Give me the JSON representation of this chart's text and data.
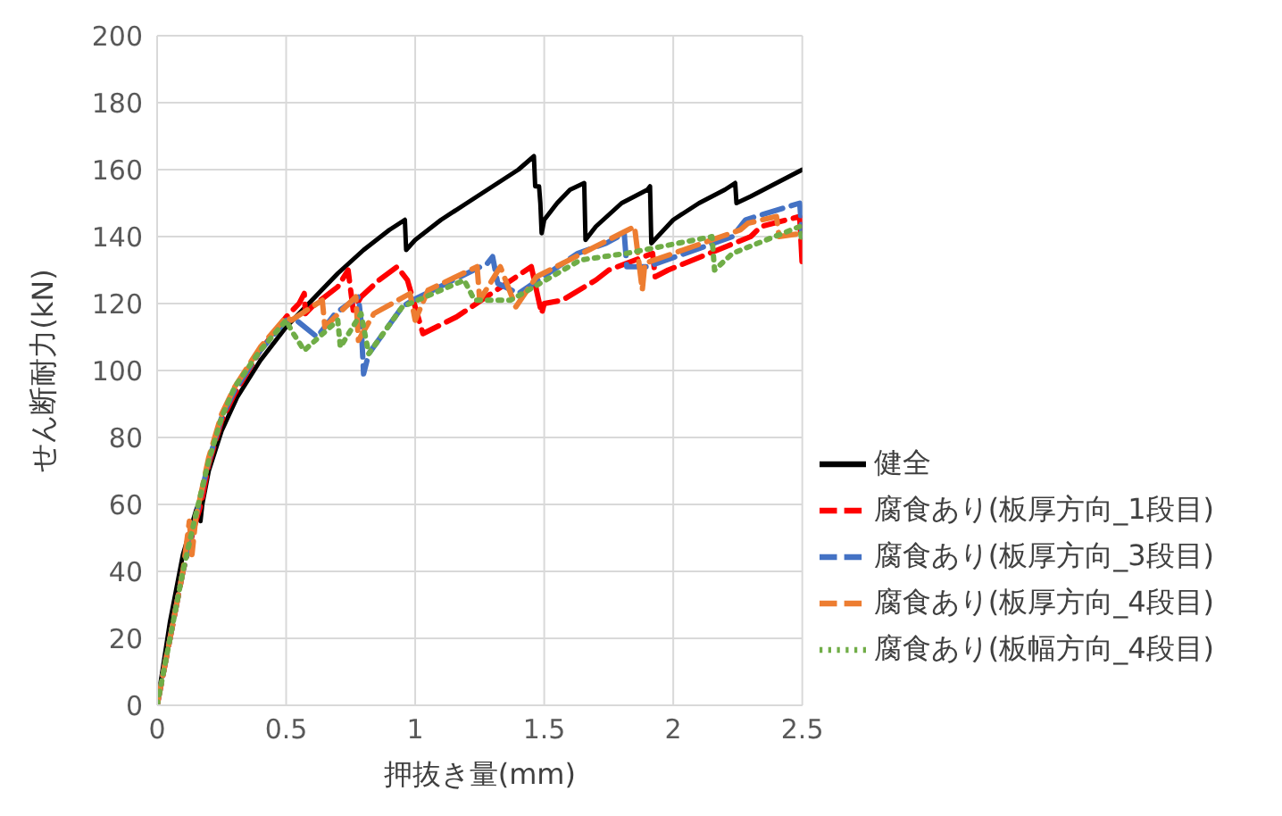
{
  "chart_data": {
    "type": "line",
    "xlabel": "押抜き量(mm)",
    "ylabel": "せん断耐力(kN)",
    "xlim": [
      0,
      2.5
    ],
    "xticks": [
      0,
      0.5,
      1,
      1.5,
      2,
      2.5
    ],
    "ylim": [
      0,
      200
    ],
    "yticks": [
      0,
      20,
      40,
      60,
      80,
      100,
      120,
      140,
      160,
      180,
      200
    ],
    "grid": true,
    "legend": "bottom right",
    "marker": "none",
    "series": [
      {
        "name": "健全",
        "color": "#000000",
        "line_style": "solid",
        "x": [
          0,
          0.05,
          0.1,
          0.15,
          0.165,
          0.168,
          0.175,
          0.2,
          0.25,
          0.31,
          0.4,
          0.5,
          0.6,
          0.7,
          0.8,
          0.9,
          0.96,
          0.965,
          1.0,
          1.1,
          1.2,
          1.3,
          1.4,
          1.46,
          1.465,
          1.48,
          1.485,
          1.49,
          1.5,
          1.55,
          1.6,
          1.655,
          1.66,
          1.7,
          1.8,
          1.9,
          1.91,
          1.915,
          2.0,
          2.1,
          2.2,
          2.24,
          2.245,
          2.3,
          2.4,
          2.5
        ],
        "values": [
          0,
          25,
          45,
          58,
          61,
          55,
          60,
          70,
          82,
          92,
          103,
          113,
          121,
          129,
          136,
          142,
          145,
          136,
          139,
          145,
          150,
          155,
          160,
          164,
          155,
          155,
          150,
          141,
          145,
          150,
          154,
          156,
          139,
          143,
          150,
          154,
          155,
          138,
          145,
          150,
          154,
          156,
          150,
          152,
          156,
          160
        ]
      },
      {
        "name": "腐食あり(板厚方向_1段目)",
        "color": "#ff0000",
        "line_style": "dashed",
        "x": [
          0,
          0.1,
          0.15,
          0.17,
          0.2,
          0.25,
          0.3,
          0.4,
          0.5,
          0.55,
          0.57,
          0.575,
          0.6,
          0.7,
          0.74,
          0.76,
          0.79,
          0.86,
          0.93,
          0.97,
          1.03,
          1.16,
          1.45,
          1.49,
          1.5,
          1.57,
          1.7,
          1.75,
          1.92,
          1.93,
          1.98,
          2.3,
          2.34,
          2.49,
          2.5
        ],
        "values": [
          0,
          40,
          55,
          60,
          72,
          85,
          93,
          106,
          116,
          120,
          123,
          117,
          119,
          125,
          130,
          118,
          122,
          127,
          131,
          127,
          111,
          116,
          131,
          117,
          120,
          121,
          127,
          130,
          135,
          128,
          130,
          140,
          143,
          146,
          131
        ]
      },
      {
        "name": "腐食あり(板厚方向_3段目)",
        "color": "#4472c4",
        "line_style": "dashed",
        "x": [
          0,
          0.1,
          0.15,
          0.2,
          0.25,
          0.3,
          0.4,
          0.5,
          0.54,
          0.62,
          0.69,
          0.78,
          0.79,
          0.8,
          0.82,
          0.95,
          0.99,
          1.28,
          1.3,
          1.32,
          1.4,
          1.63,
          1.74,
          1.81,
          1.82,
          1.9,
          2.23,
          2.28,
          2.49,
          2.5
        ],
        "values": [
          0,
          40,
          56,
          73,
          86,
          94,
          106,
          115,
          115,
          110,
          117,
          122,
          115,
          99,
          105,
          119,
          121,
          132,
          134,
          126,
          123,
          135,
          138,
          141,
          131,
          131,
          140,
          145,
          150,
          140
        ]
      },
      {
        "name": "腐食あり(板厚方向_4段目)",
        "color": "#ed7d31",
        "line_style": "dashed",
        "x": [
          0,
          0.1,
          0.125,
          0.135,
          0.15,
          0.2,
          0.25,
          0.3,
          0.4,
          0.5,
          0.52,
          0.64,
          0.65,
          0.77,
          0.78,
          0.84,
          0.98,
          1.0,
          1.05,
          1.24,
          1.25,
          1.33,
          1.39,
          1.47,
          1.85,
          1.88,
          1.89,
          2.26,
          2.29,
          2.4,
          2.41,
          2.5
        ],
        "values": [
          0,
          40,
          55,
          45,
          56,
          74,
          87,
          95,
          107,
          116,
          115,
          121,
          113,
          122,
          109,
          117,
          123,
          115,
          124,
          131,
          121,
          131,
          119,
          128,
          143,
          124,
          132,
          142,
          144,
          146,
          140,
          141
        ]
      },
      {
        "name": "腐食あり(板幅方向_4段目)",
        "color": "#70ad47",
        "line_style": "dotted",
        "x": [
          0,
          0.1,
          0.15,
          0.2,
          0.25,
          0.3,
          0.4,
          0.5,
          0.52,
          0.57,
          0.7,
          0.71,
          0.79,
          0.82,
          0.95,
          1.19,
          1.23,
          1.37,
          1.64,
          1.82,
          2.15,
          2.16,
          2.23,
          2.49,
          2.5
        ],
        "values": [
          0,
          40,
          57,
          73,
          86,
          95,
          106,
          115,
          112,
          106,
          115,
          107,
          117,
          105,
          119,
          127,
          121,
          121,
          133,
          135,
          140,
          130,
          135,
          143,
          138
        ]
      }
    ]
  }
}
